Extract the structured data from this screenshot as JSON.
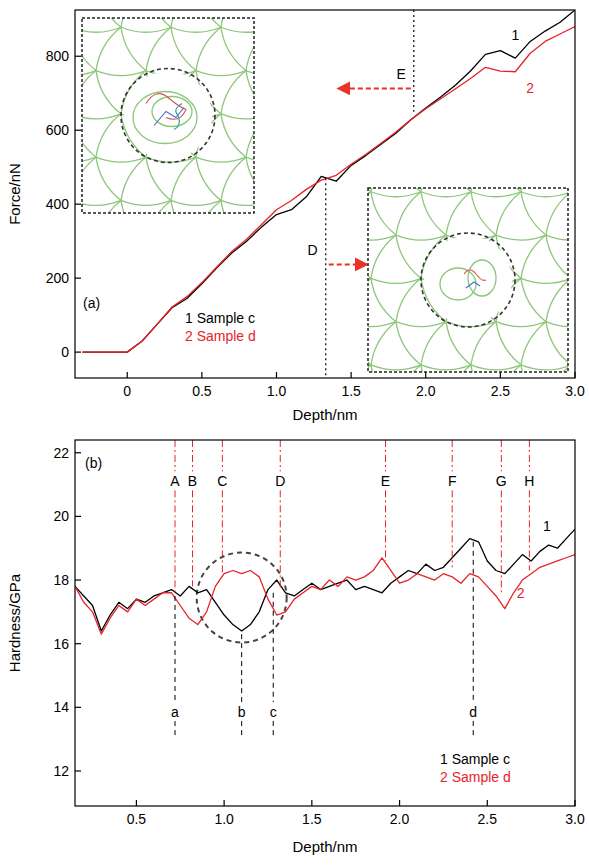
{
  "chart_data": [
    {
      "type": "line",
      "label": "(a)",
      "x_label": "Depth/nm",
      "y_label": "Force/nN",
      "xlim": [
        -0.35,
        3.0
      ],
      "ylim": [
        -70,
        925
      ],
      "xticks": [
        0,
        0.5,
        {
          "value": 1,
          "label": "1.0"
        },
        1.5,
        {
          "value": 2,
          "label": "2.0"
        },
        2.5,
        {
          "value": 3,
          "label": "3.0"
        }
      ],
      "yticks": [
        0,
        200,
        400,
        600,
        800
      ],
      "grid": false,
      "legend": "lower left",
      "x": [
        -0.3,
        -0.2,
        -0.1,
        0,
        0.1,
        0.2,
        0.3,
        0.4,
        0.5,
        0.6,
        0.7,
        0.8,
        0.9,
        1.0,
        1.1,
        1.2,
        1.3,
        1.4,
        1.5,
        1.6,
        1.7,
        1.8,
        1.9,
        2.0,
        2.1,
        2.2,
        2.3,
        2.4,
        2.5,
        2.6,
        2.7,
        2.8,
        2.9,
        3.0
      ],
      "series": [
        {
          "name": "1 Sample c",
          "color": "#000000",
          "values": [
            0,
            0,
            0,
            0,
            30,
            75,
            120,
            145,
            185,
            228,
            268,
            300,
            338,
            372,
            385,
            420,
            475,
            462,
            505,
            532,
            562,
            592,
            628,
            660,
            690,
            722,
            760,
            805,
            815,
            795,
            840,
            868,
            892,
            925
          ]
        },
        {
          "name": "2 Sample d",
          "color": "#e8222a",
          "values": [
            0,
            0,
            0,
            0,
            30,
            75,
            122,
            150,
            188,
            230,
            272,
            305,
            345,
            385,
            410,
            440,
            465,
            478,
            508,
            535,
            565,
            595,
            628,
            658,
            685,
            712,
            740,
            770,
            760,
            758,
            808,
            840,
            860,
            880
          ]
        }
      ],
      "series_labels": [
        {
          "text": "1",
          "x": 2.6,
          "y": 845,
          "color": "#000000"
        },
        {
          "text": "2",
          "x": 2.7,
          "y": 700,
          "color": "#e8222a"
        }
      ],
      "annotations": [
        {
          "text": "D",
          "x": 1.33,
          "y_range": [
            -70,
            470
          ],
          "arrow": [
            1.35,
            1.6
          ],
          "arrow_y": 237,
          "line_style": "dotted",
          "color": "#000000"
        },
        {
          "text": "E",
          "x": 1.92,
          "y_range": [
            650,
            925
          ],
          "arrow": [
            1.9,
            1.42
          ],
          "arrow_y": 713,
          "line_style": "dotted",
          "color": "#000000"
        }
      ]
    },
    {
      "type": "line",
      "label": "(b)",
      "x_label": "Depth/nm",
      "y_label": "Hardness/GPa",
      "xlim": [
        0.15,
        3.0
      ],
      "ylim": [
        10.9,
        22.4
      ],
      "xticks": [
        0.5,
        {
          "value": 1,
          "label": "1.0"
        },
        1.5,
        {
          "value": 2,
          "label": "2.0"
        },
        2.5,
        {
          "value": 3,
          "label": "3.0"
        }
      ],
      "yticks": [
        12,
        14,
        16,
        18,
        20,
        22
      ],
      "grid": false,
      "legend": "lower right",
      "x": [
        0.15,
        0.2,
        0.25,
        0.3,
        0.35,
        0.4,
        0.45,
        0.5,
        0.55,
        0.6,
        0.65,
        0.7,
        0.75,
        0.8,
        0.85,
        0.9,
        0.95,
        1.0,
        1.05,
        1.1,
        1.15,
        1.2,
        1.25,
        1.3,
        1.35,
        1.4,
        1.45,
        1.5,
        1.55,
        1.6,
        1.65,
        1.7,
        1.75,
        1.8,
        1.85,
        1.9,
        1.95,
        2.0,
        2.05,
        2.1,
        2.15,
        2.2,
        2.25,
        2.3,
        2.35,
        2.4,
        2.45,
        2.5,
        2.55,
        2.6,
        2.65,
        2.7,
        2.75,
        2.8,
        2.85,
        2.9,
        2.95,
        3.0
      ],
      "series": [
        {
          "name": "1 Sample c",
          "color": "#000000",
          "values": [
            17.8,
            17.5,
            17.2,
            16.4,
            16.9,
            17.3,
            17.1,
            17.4,
            17.3,
            17.5,
            17.6,
            17.7,
            17.5,
            17.8,
            17.6,
            17.7,
            17.3,
            16.9,
            16.6,
            16.4,
            16.6,
            17.0,
            17.7,
            18.0,
            17.6,
            17.5,
            17.7,
            17.9,
            17.7,
            17.8,
            17.9,
            18.0,
            17.7,
            17.8,
            17.7,
            17.6,
            17.9,
            18.1,
            18.3,
            18.2,
            18.5,
            18.3,
            18.4,
            18.7,
            19.0,
            19.3,
            19.2,
            18.6,
            18.3,
            18.2,
            18.5,
            18.8,
            18.6,
            18.9,
            19.1,
            19.0,
            19.3,
            19.6
          ]
        },
        {
          "name": "2 Sample d",
          "color": "#e8222a",
          "values": [
            17.8,
            17.3,
            17.0,
            16.3,
            16.8,
            17.2,
            17.0,
            17.4,
            17.2,
            17.4,
            17.6,
            17.6,
            17.2,
            16.8,
            16.6,
            17.0,
            17.8,
            18.2,
            18.3,
            18.2,
            18.3,
            18.1,
            17.4,
            16.9,
            17.0,
            17.4,
            17.6,
            17.8,
            17.7,
            18.0,
            17.8,
            18.1,
            18.0,
            18.1,
            18.3,
            18.7,
            18.3,
            17.9,
            18.0,
            18.2,
            18.1,
            18.0,
            18.2,
            18.1,
            17.9,
            18.2,
            18.1,
            17.8,
            17.5,
            17.1,
            17.6,
            18.0,
            18.2,
            18.4,
            18.5,
            18.6,
            18.7,
            18.8
          ]
        }
      ],
      "series_labels": [
        {
          "text": "1",
          "x": 2.84,
          "y": 19.55,
          "color": "#000000"
        },
        {
          "text": "2",
          "x": 2.69,
          "y": 17.45,
          "color": "#e8222a"
        }
      ],
      "annotations": [
        {
          "text": "A",
          "x": 0.72,
          "y_range": [
            17.6,
            22.4
          ],
          "label_y": 21.1,
          "line_style": "dashdot",
          "color": "#e8222a"
        },
        {
          "text": "B",
          "x": 0.82,
          "y_range": [
            17.8,
            22.4
          ],
          "label_y": 21.1,
          "line_style": "dashdot",
          "color": "#e8222a"
        },
        {
          "text": "C",
          "x": 0.99,
          "y_range": [
            18.2,
            22.4
          ],
          "label_y": 21.1,
          "line_style": "dashdot",
          "color": "#e8222a"
        },
        {
          "text": "D",
          "x": 1.32,
          "y_range": [
            17.7,
            22.4
          ],
          "label_y": 21.1,
          "line_style": "dashdot",
          "color": "#e8222a"
        },
        {
          "text": "E",
          "x": 1.92,
          "y_range": [
            18.6,
            22.4
          ],
          "label_y": 21.1,
          "line_style": "dashdot",
          "color": "#e8222a"
        },
        {
          "text": "F",
          "x": 2.3,
          "y_range": [
            18.4,
            22.4
          ],
          "label_y": 21.1,
          "line_style": "dashdot",
          "color": "#e8222a"
        },
        {
          "text": "G",
          "x": 2.58,
          "y_range": [
            17.6,
            22.4
          ],
          "label_y": 21.1,
          "line_style": "dashdot",
          "color": "#e8222a"
        },
        {
          "text": "H",
          "x": 2.74,
          "y_range": [
            18.3,
            22.4
          ],
          "label_y": 21.1,
          "line_style": "dashdot",
          "color": "#e8222a"
        },
        {
          "text": "a",
          "x": 0.72,
          "y_range": [
            13.0,
            17.5
          ],
          "label_y": 13.85,
          "line_style": "dashed",
          "color": "#000000"
        },
        {
          "text": "b",
          "x": 1.1,
          "y_range": [
            13.0,
            16.3
          ],
          "label_y": 13.85,
          "line_style": "dashed",
          "color": "#000000"
        },
        {
          "text": "c",
          "x": 1.28,
          "y_range": [
            13.0,
            17.6
          ],
          "label_y": 13.85,
          "line_style": "dashed",
          "color": "#000000"
        },
        {
          "text": "d",
          "x": 2.42,
          "y_range": [
            13.0,
            19.2
          ],
          "label_y": 13.85,
          "line_style": "dashed",
          "color": "#000000"
        }
      ],
      "circle": {
        "x": 1.1,
        "y": 17.45
      }
    }
  ]
}
